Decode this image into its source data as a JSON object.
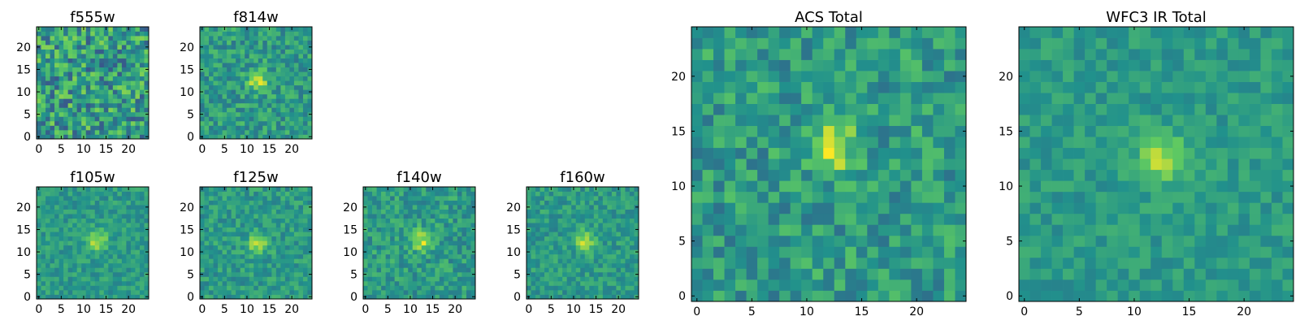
{
  "colormap": [
    "#440154",
    "#3b528b",
    "#21918c",
    "#5ec962",
    "#fde725"
  ],
  "chart_data": [
    {
      "type": "heatmap",
      "title": "f555w",
      "size": 25,
      "xticks": [
        0,
        5,
        10,
        15,
        20
      ],
      "yticks": [
        0,
        5,
        10,
        15,
        20
      ],
      "source_peak": [],
      "noise_level": 0.3,
      "contrast": 0.9,
      "seed": 11
    },
    {
      "type": "heatmap",
      "title": "f814w",
      "size": 25,
      "xticks": [
        0,
        5,
        10,
        15,
        20
      ],
      "yticks": [
        0,
        5,
        10,
        15,
        20
      ],
      "source_peak": [
        12.5,
        12.5
      ],
      "noise_level": 0.18,
      "contrast": 0.9,
      "seed": 23
    },
    {
      "type": "heatmap",
      "title": "f105w",
      "size": 25,
      "xticks": [
        0,
        5,
        10,
        15,
        20
      ],
      "yticks": [
        0,
        5,
        10,
        15,
        20
      ],
      "source_peak": [
        13,
        12.5
      ],
      "noise_level": 0.14,
      "contrast": 0.8,
      "seed": 37
    },
    {
      "type": "heatmap",
      "title": "f125w",
      "size": 25,
      "xticks": [
        0,
        5,
        10,
        15,
        20
      ],
      "yticks": [
        0,
        5,
        10,
        15,
        20
      ],
      "source_peak": [
        12.5,
        12
      ],
      "noise_level": 0.16,
      "contrast": 0.8,
      "seed": 41
    },
    {
      "type": "heatmap",
      "title": "f140w",
      "size": 25,
      "xticks": [
        0,
        5,
        10,
        15,
        20
      ],
      "yticks": [
        0,
        5,
        10,
        15,
        20
      ],
      "source_peak": [
        12.5,
        12.5
      ],
      "noise_level": 0.17,
      "contrast": 0.85,
      "seed": 53
    },
    {
      "type": "heatmap",
      "title": "f160w",
      "size": 25,
      "xticks": [
        0,
        5,
        10,
        15,
        20
      ],
      "yticks": [
        0,
        5,
        10,
        15,
        20
      ],
      "source_peak": [
        12.5,
        12.5
      ],
      "noise_level": 0.15,
      "contrast": 0.8,
      "seed": 67
    },
    {
      "type": "heatmap",
      "title": "ACS Total",
      "size": 25,
      "xticks": [
        0,
        5,
        10,
        15,
        20
      ],
      "yticks": [
        0,
        5,
        10,
        15,
        20
      ],
      "source_peak": [
        12.5,
        13.5
      ],
      "noise_level": 0.2,
      "contrast": 0.85,
      "seed": 79
    },
    {
      "type": "heatmap",
      "title": "WFC3 IR Total",
      "size": 25,
      "xticks": [
        0,
        5,
        10,
        15,
        20
      ],
      "yticks": [
        0,
        5,
        10,
        15,
        20
      ],
      "source_peak": [
        12.5,
        12.5
      ],
      "noise_level": 0.12,
      "contrast": 0.8,
      "seed": 97
    }
  ]
}
